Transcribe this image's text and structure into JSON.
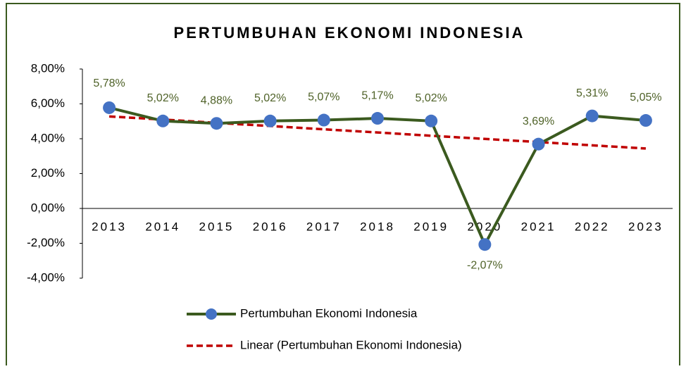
{
  "chart_data": {
    "type": "line",
    "title": "PERTUMBUHAN EKONOMI INDONESIA",
    "categories": [
      "2013",
      "2014",
      "2015",
      "2016",
      "2017",
      "2018",
      "2019",
      "2020",
      "2021",
      "2022",
      "2023"
    ],
    "series": [
      {
        "name": "Pertumbuhan Ekonomi Indonesia",
        "color": "#3b5a1f",
        "marker_color": "#4472c4",
        "values": [
          5.78,
          5.02,
          4.88,
          5.02,
          5.07,
          5.17,
          5.02,
          -2.07,
          3.69,
          5.31,
          5.05
        ],
        "value_labels": [
          "5,78%",
          "5,02%",
          "4,88%",
          "5,02%",
          "5,07%",
          "5,17%",
          "5,02%",
          "-2,07%",
          "3,69%",
          "5,31%",
          "5,05%"
        ]
      },
      {
        "name": "Linear (Pertumbuhan Ekonomi Indonesia)",
        "color": "#c00000",
        "dashed": true,
        "values": [
          5.28,
          5.1,
          4.91,
          4.73,
          4.54,
          4.36,
          4.17,
          3.99,
          3.81,
          3.62,
          3.44
        ]
      }
    ],
    "ylim": [
      -4,
      8
    ],
    "yticks": [
      {
        "value": -4,
        "label": "-4,00%"
      },
      {
        "value": -2,
        "label": "-2,00%"
      },
      {
        "value": 0,
        "label": "0,00%"
      },
      {
        "value": 2,
        "label": "2,00%"
      },
      {
        "value": 4,
        "label": "4,00%"
      },
      {
        "value": 6,
        "label": "6,00%"
      },
      {
        "value": 8,
        "label": "8,00%"
      }
    ],
    "grid": false,
    "legend": "bottom"
  }
}
